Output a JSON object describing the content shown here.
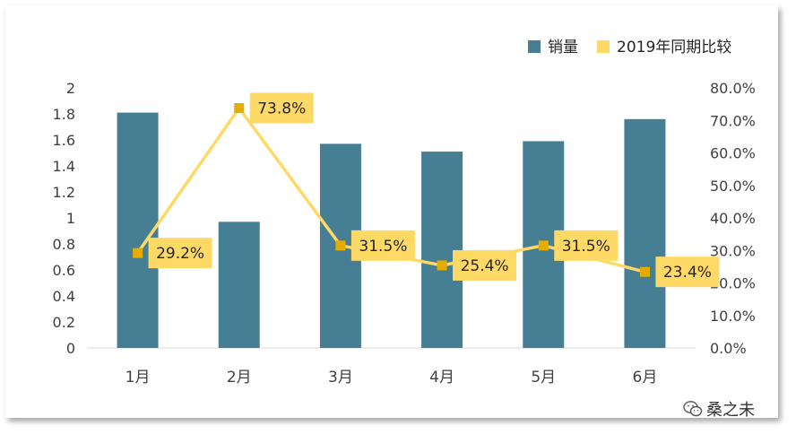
{
  "chart_data": {
    "type": "bar+line",
    "categories": [
      "1月",
      "2月",
      "3月",
      "4月",
      "5月",
      "6月"
    ],
    "series": [
      {
        "name": "销量",
        "type": "bar",
        "axis": "left",
        "color": "#467F93",
        "values": [
          1.81,
          0.97,
          1.57,
          1.51,
          1.59,
          1.76
        ]
      },
      {
        "name": "2019年同期比较",
        "type": "line",
        "axis": "right",
        "color": "#FFD966",
        "marker_color": "#E6AC00",
        "values": [
          29.2,
          73.8,
          31.5,
          25.4,
          31.5,
          23.4
        ],
        "labels": [
          "29.2%",
          "73.8%",
          "31.5%",
          "25.4%",
          "31.5%",
          "23.4%"
        ]
      }
    ],
    "y_left": {
      "min": 0,
      "max": 2,
      "ticks": [
        "0",
        "0.2",
        "0.4",
        "0.6",
        "0.8",
        "1",
        "1.2",
        "1.4",
        "1.6",
        "1.8",
        "2"
      ]
    },
    "y_right": {
      "min": 0,
      "max": 80,
      "ticks": [
        "0.0%",
        "10.0%",
        "20.0%",
        "30.0%",
        "40.0%",
        "50.0%",
        "60.0%",
        "70.0%",
        "80.0%"
      ]
    },
    "legend_position": "top-right",
    "grid": false
  },
  "watermark": {
    "text": "桑之未",
    "icon": "wechat-icon"
  }
}
